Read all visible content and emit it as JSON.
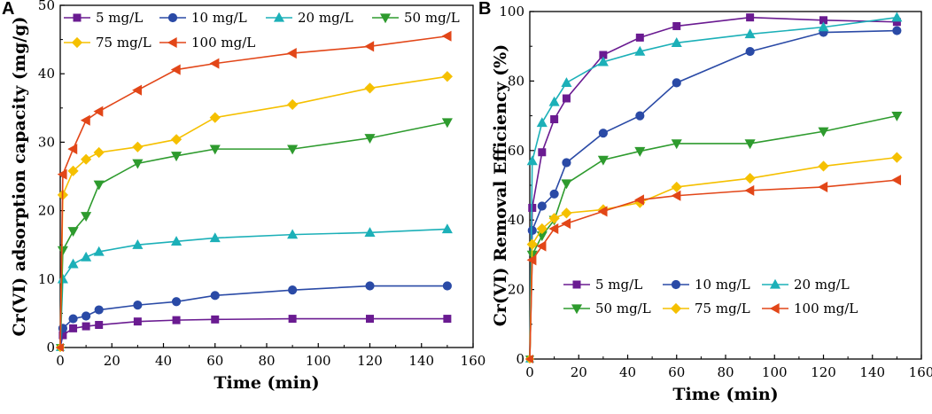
{
  "chart_data": [
    {
      "panel": "A",
      "type": "line",
      "xlabel": "Time (min)",
      "ylabel": "Cr(VI) adsorption capacity (mg/g)",
      "xlim": [
        0,
        160
      ],
      "ylim": [
        0,
        50
      ],
      "xticks": [
        0,
        20,
        40,
        60,
        80,
        100,
        120,
        140,
        160
      ],
      "yticks": [
        0,
        10,
        20,
        30,
        40,
        50
      ],
      "x": [
        0,
        1,
        5,
        10,
        15,
        30,
        45,
        60,
        90,
        120,
        150
      ],
      "series": [
        {
          "name": "5 mg/L",
          "values": [
            0,
            1.8,
            2.8,
            3.1,
            3.3,
            3.8,
            4.0,
            4.1,
            4.2,
            4.2,
            4.2
          ]
        },
        {
          "name": "10 mg/L",
          "values": [
            0,
            2.8,
            4.2,
            4.6,
            5.5,
            6.2,
            6.7,
            7.6,
            8.4,
            9.0,
            9.0
          ]
        },
        {
          "name": "20 mg/L",
          "values": [
            0,
            10.0,
            12.2,
            13.2,
            14.0,
            15.0,
            15.5,
            16.0,
            16.5,
            16.8,
            17.3
          ]
        },
        {
          "name": "50 mg/L",
          "values": [
            0,
            14.2,
            17.0,
            19.2,
            23.8,
            26.9,
            28.0,
            29.0,
            29.0,
            30.6,
            32.9
          ]
        },
        {
          "name": "75 mg/L",
          "values": [
            0,
            22.3,
            25.8,
            27.5,
            28.5,
            29.3,
            30.4,
            33.6,
            35.5,
            37.9,
            39.6
          ]
        },
        {
          "name": "100 mg/L",
          "values": [
            0,
            25.3,
            29.0,
            33.2,
            34.5,
            37.6,
            40.6,
            41.5,
            43.0,
            44.0,
            45.5
          ]
        }
      ]
    },
    {
      "panel": "B",
      "type": "line",
      "xlabel": "Time (min)",
      "ylabel": "Cr(VI) Removal Efficiency (%)",
      "xlim": [
        0,
        160
      ],
      "ylim": [
        0,
        100
      ],
      "xticks": [
        0,
        20,
        40,
        60,
        80,
        100,
        120,
        140,
        160
      ],
      "yticks": [
        0,
        20,
        40,
        60,
        80,
        100
      ],
      "x": [
        0,
        1,
        5,
        10,
        15,
        30,
        45,
        60,
        90,
        120,
        150
      ],
      "series": [
        {
          "name": "5 mg/L",
          "values": [
            0,
            43.5,
            59.5,
            69.0,
            75.0,
            87.5,
            92.5,
            95.8,
            98.3,
            97.5,
            97.0
          ]
        },
        {
          "name": "10 mg/L",
          "values": [
            0,
            37.0,
            44.0,
            47.5,
            56.5,
            65.0,
            70.0,
            79.5,
            88.5,
            94.0,
            94.5
          ]
        },
        {
          "name": "20 mg/L",
          "values": [
            0,
            57.0,
            68.0,
            74.0,
            79.5,
            85.5,
            88.5,
            91.0,
            93.5,
            95.5,
            98.3
          ]
        },
        {
          "name": "50 mg/L",
          "values": [
            0,
            30.0,
            35.5,
            40.0,
            50.5,
            57.3,
            59.8,
            62.0,
            62.0,
            65.5,
            70.0
          ]
        },
        {
          "name": "75 mg/L",
          "values": [
            0,
            33.0,
            37.5,
            40.5,
            42.0,
            43.0,
            45.0,
            49.5,
            52.0,
            55.5,
            58.0
          ]
        },
        {
          "name": "100 mg/L",
          "values": [
            0,
            28.5,
            32.5,
            37.5,
            39.0,
            42.5,
            45.8,
            47.0,
            48.5,
            49.5,
            51.5
          ]
        }
      ]
    }
  ],
  "styles": [
    {
      "color": "#6a1b91",
      "marker": "square"
    },
    {
      "color": "#2a4aa6",
      "marker": "circle"
    },
    {
      "color": "#1cb0b8",
      "marker": "triangle-up"
    },
    {
      "color": "#2e9b2e",
      "marker": "triangle-down"
    },
    {
      "color": "#f5c000",
      "marker": "diamond"
    },
    {
      "color": "#e24618",
      "marker": "triangle-left"
    }
  ]
}
